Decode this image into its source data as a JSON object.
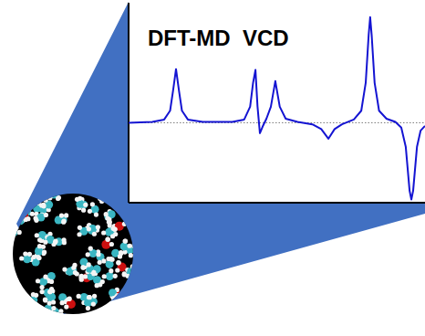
{
  "chart_data": {
    "type": "line",
    "title": "DFT-MD  VCD",
    "color": "#1414d2",
    "x": [
      0,
      8,
      12,
      14,
      15,
      16,
      17,
      18,
      20,
      25,
      35,
      39,
      41,
      42,
      42.8,
      43.5,
      44.3,
      45.2,
      46.5,
      48,
      49.5,
      51,
      53,
      57,
      62,
      65,
      67.4,
      69.5,
      72,
      76,
      78.5,
      80,
      81,
      81.5,
      82,
      83,
      84.5,
      87,
      90,
      92,
      93.5,
      94.8,
      95.4,
      96,
      97.3,
      98.5,
      100
    ],
    "values": [
      0.0,
      0.01,
      0.04,
      0.15,
      0.4,
      0.67,
      0.4,
      0.15,
      0.04,
      0.01,
      0.01,
      0.04,
      0.2,
      0.5,
      0.66,
      0.2,
      -0.13,
      -0.05,
      0.05,
      0.2,
      0.52,
      0.2,
      0.05,
      0.01,
      -0.02,
      -0.08,
      -0.2,
      -0.08,
      -0.02,
      0.04,
      0.15,
      0.5,
      1.1,
      1.32,
      1.1,
      0.5,
      0.15,
      0.05,
      0.01,
      -0.06,
      -0.3,
      -0.85,
      -0.96,
      -0.85,
      -0.3,
      -0.1,
      -0.04
    ],
    "xlim": [
      0,
      100
    ],
    "ylim": [
      -1,
      1.5
    ],
    "yticks": [
      0
    ],
    "grid": true,
    "tick_labels": false
  }
}
